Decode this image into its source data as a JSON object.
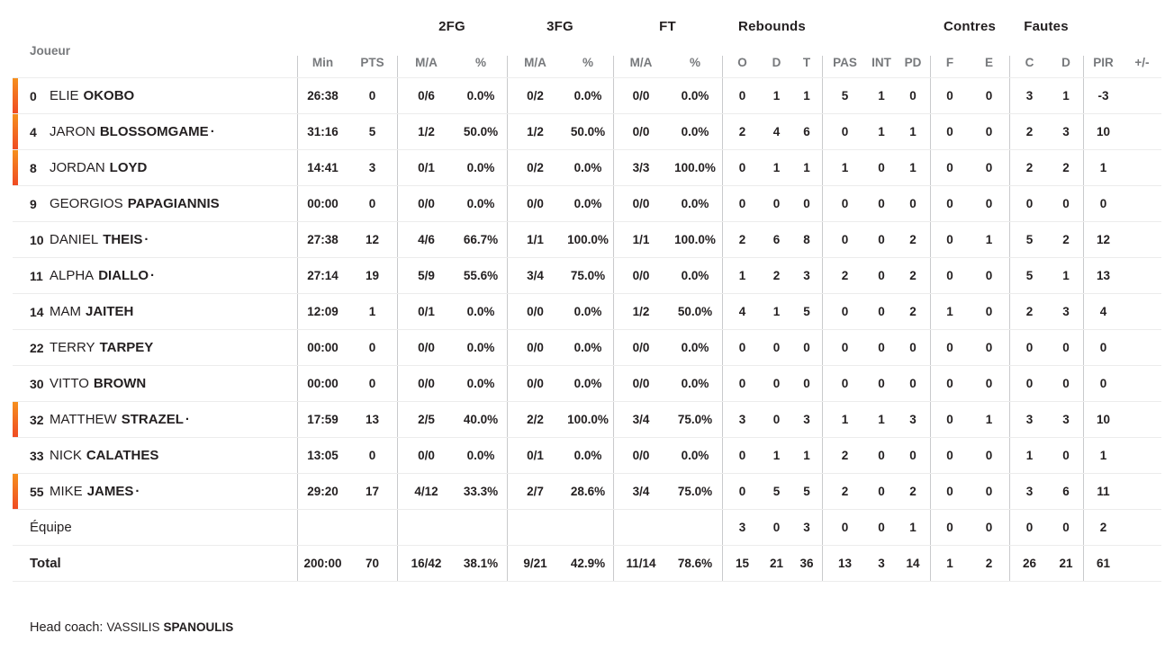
{
  "header": {
    "player_col": "Joueur",
    "groups": {
      "fg2": "2FG",
      "fg3": "3FG",
      "ft": "FT",
      "rebounds": "Rebounds",
      "contres": "Contres",
      "fautes": "Fautes"
    },
    "cols": {
      "min": "Min",
      "pts": "PTS",
      "ma": "M/A",
      "pct": "%",
      "reb_o": "O",
      "reb_d": "D",
      "reb_t": "T",
      "pas": "PAS",
      "int": "INT",
      "pd": "PD",
      "blk_f": "F",
      "blk_e": "E",
      "foul_c": "C",
      "foul_d": "D",
      "pir": "PIR",
      "plus_minus": "+/-"
    }
  },
  "players": [
    {
      "type": "player",
      "starter": true,
      "number": "0",
      "first": "ELIE",
      "last": "OKOBO",
      "dot": "",
      "min": "26:38",
      "pts": "0",
      "fg2_ma": "0/6",
      "fg2_pct": "0.0%",
      "fg3_ma": "0/2",
      "fg3_pct": "0.0%",
      "ft_ma": "0/0",
      "ft_pct": "0.0%",
      "reb_o": "0",
      "reb_d": "1",
      "reb_t": "1",
      "pas": "5",
      "int": "1",
      "pd": "0",
      "blk_f": "0",
      "blk_e": "0",
      "foul_c": "3",
      "foul_d": "1",
      "pir": "-3",
      "plus_minus": ""
    },
    {
      "type": "player",
      "starter": true,
      "number": "4",
      "first": "JARON",
      "last": "BLOSSOMGAME",
      "dot": "·",
      "min": "31:16",
      "pts": "5",
      "fg2_ma": "1/2",
      "fg2_pct": "50.0%",
      "fg3_ma": "1/2",
      "fg3_pct": "50.0%",
      "ft_ma": "0/0",
      "ft_pct": "0.0%",
      "reb_o": "2",
      "reb_d": "4",
      "reb_t": "6",
      "pas": "0",
      "int": "1",
      "pd": "1",
      "blk_f": "0",
      "blk_e": "0",
      "foul_c": "2",
      "foul_d": "3",
      "pir": "10",
      "plus_minus": ""
    },
    {
      "type": "player",
      "starter": true,
      "number": "8",
      "first": "JORDAN",
      "last": "LOYD",
      "dot": "",
      "min": "14:41",
      "pts": "3",
      "fg2_ma": "0/1",
      "fg2_pct": "0.0%",
      "fg3_ma": "0/2",
      "fg3_pct": "0.0%",
      "ft_ma": "3/3",
      "ft_pct": "100.0%",
      "reb_o": "0",
      "reb_d": "1",
      "reb_t": "1",
      "pas": "1",
      "int": "0",
      "pd": "1",
      "blk_f": "0",
      "blk_e": "0",
      "foul_c": "2",
      "foul_d": "2",
      "pir": "1",
      "plus_minus": ""
    },
    {
      "type": "player",
      "starter": false,
      "number": "9",
      "first": "GEORGIOS",
      "last": "PAPAGIANNIS",
      "dot": "",
      "min": "00:00",
      "pts": "0",
      "fg2_ma": "0/0",
      "fg2_pct": "0.0%",
      "fg3_ma": "0/0",
      "fg3_pct": "0.0%",
      "ft_ma": "0/0",
      "ft_pct": "0.0%",
      "reb_o": "0",
      "reb_d": "0",
      "reb_t": "0",
      "pas": "0",
      "int": "0",
      "pd": "0",
      "blk_f": "0",
      "blk_e": "0",
      "foul_c": "0",
      "foul_d": "0",
      "pir": "0",
      "plus_minus": ""
    },
    {
      "type": "player",
      "starter": false,
      "number": "10",
      "first": "DANIEL",
      "last": "THEIS",
      "dot": "·",
      "min": "27:38",
      "pts": "12",
      "fg2_ma": "4/6",
      "fg2_pct": "66.7%",
      "fg3_ma": "1/1",
      "fg3_pct": "100.0%",
      "ft_ma": "1/1",
      "ft_pct": "100.0%",
      "reb_o": "2",
      "reb_d": "6",
      "reb_t": "8",
      "pas": "0",
      "int": "0",
      "pd": "2",
      "blk_f": "0",
      "blk_e": "1",
      "foul_c": "5",
      "foul_d": "2",
      "pir": "12",
      "plus_minus": ""
    },
    {
      "type": "player",
      "starter": false,
      "number": "11",
      "first": "ALPHA",
      "last": "DIALLO",
      "dot": "·",
      "min": "27:14",
      "pts": "19",
      "fg2_ma": "5/9",
      "fg2_pct": "55.6%",
      "fg3_ma": "3/4",
      "fg3_pct": "75.0%",
      "ft_ma": "0/0",
      "ft_pct": "0.0%",
      "reb_o": "1",
      "reb_d": "2",
      "reb_t": "3",
      "pas": "2",
      "int": "0",
      "pd": "2",
      "blk_f": "0",
      "blk_e": "0",
      "foul_c": "5",
      "foul_d": "1",
      "pir": "13",
      "plus_minus": ""
    },
    {
      "type": "player",
      "starter": false,
      "number": "14",
      "first": "MAM",
      "last": "JAITEH",
      "dot": "",
      "min": "12:09",
      "pts": "1",
      "fg2_ma": "0/1",
      "fg2_pct": "0.0%",
      "fg3_ma": "0/0",
      "fg3_pct": "0.0%",
      "ft_ma": "1/2",
      "ft_pct": "50.0%",
      "reb_o": "4",
      "reb_d": "1",
      "reb_t": "5",
      "pas": "0",
      "int": "0",
      "pd": "2",
      "blk_f": "1",
      "blk_e": "0",
      "foul_c": "2",
      "foul_d": "3",
      "pir": "4",
      "plus_minus": ""
    },
    {
      "type": "player",
      "starter": false,
      "number": "22",
      "first": "TERRY",
      "last": "TARPEY",
      "dot": "",
      "min": "00:00",
      "pts": "0",
      "fg2_ma": "0/0",
      "fg2_pct": "0.0%",
      "fg3_ma": "0/0",
      "fg3_pct": "0.0%",
      "ft_ma": "0/0",
      "ft_pct": "0.0%",
      "reb_o": "0",
      "reb_d": "0",
      "reb_t": "0",
      "pas": "0",
      "int": "0",
      "pd": "0",
      "blk_f": "0",
      "blk_e": "0",
      "foul_c": "0",
      "foul_d": "0",
      "pir": "0",
      "plus_minus": ""
    },
    {
      "type": "player",
      "starter": false,
      "number": "30",
      "first": "VITTO",
      "last": "BROWN",
      "dot": "",
      "min": "00:00",
      "pts": "0",
      "fg2_ma": "0/0",
      "fg2_pct": "0.0%",
      "fg3_ma": "0/0",
      "fg3_pct": "0.0%",
      "ft_ma": "0/0",
      "ft_pct": "0.0%",
      "reb_o": "0",
      "reb_d": "0",
      "reb_t": "0",
      "pas": "0",
      "int": "0",
      "pd": "0",
      "blk_f": "0",
      "blk_e": "0",
      "foul_c": "0",
      "foul_d": "0",
      "pir": "0",
      "plus_minus": ""
    },
    {
      "type": "player",
      "starter": true,
      "number": "32",
      "first": "MATTHEW",
      "last": "STRAZEL",
      "dot": "·",
      "min": "17:59",
      "pts": "13",
      "fg2_ma": "2/5",
      "fg2_pct": "40.0%",
      "fg3_ma": "2/2",
      "fg3_pct": "100.0%",
      "ft_ma": "3/4",
      "ft_pct": "75.0%",
      "reb_o": "3",
      "reb_d": "0",
      "reb_t": "3",
      "pas": "1",
      "int": "1",
      "pd": "3",
      "blk_f": "0",
      "blk_e": "1",
      "foul_c": "3",
      "foul_d": "3",
      "pir": "10",
      "plus_minus": ""
    },
    {
      "type": "player",
      "starter": false,
      "number": "33",
      "first": "NICK",
      "last": "CALATHES",
      "dot": "",
      "min": "13:05",
      "pts": "0",
      "fg2_ma": "0/0",
      "fg2_pct": "0.0%",
      "fg3_ma": "0/1",
      "fg3_pct": "0.0%",
      "ft_ma": "0/0",
      "ft_pct": "0.0%",
      "reb_o": "0",
      "reb_d": "1",
      "reb_t": "1",
      "pas": "2",
      "int": "0",
      "pd": "0",
      "blk_f": "0",
      "blk_e": "0",
      "foul_c": "1",
      "foul_d": "0",
      "pir": "1",
      "plus_minus": ""
    },
    {
      "type": "player",
      "starter": true,
      "number": "55",
      "first": "MIKE",
      "last": "JAMES",
      "dot": "·",
      "min": "29:20",
      "pts": "17",
      "fg2_ma": "4/12",
      "fg2_pct": "33.3%",
      "fg3_ma": "2/7",
      "fg3_pct": "28.6%",
      "ft_ma": "3/4",
      "ft_pct": "75.0%",
      "reb_o": "0",
      "reb_d": "5",
      "reb_t": "5",
      "pas": "2",
      "int": "0",
      "pd": "2",
      "blk_f": "0",
      "blk_e": "0",
      "foul_c": "3",
      "foul_d": "6",
      "pir": "11",
      "plus_minus": ""
    },
    {
      "type": "team",
      "starter": false,
      "number": "",
      "first": "Équipe",
      "last": "",
      "dot": "",
      "min": "",
      "pts": "",
      "fg2_ma": "",
      "fg2_pct": "",
      "fg3_ma": "",
      "fg3_pct": "",
      "ft_ma": "",
      "ft_pct": "",
      "reb_o": "3",
      "reb_d": "0",
      "reb_t": "3",
      "pas": "0",
      "int": "0",
      "pd": "1",
      "blk_f": "0",
      "blk_e": "0",
      "foul_c": "0",
      "foul_d": "0",
      "pir": "2",
      "plus_minus": ""
    },
    {
      "type": "total",
      "starter": false,
      "number": "",
      "first": "",
      "last": "Total",
      "dot": "",
      "min": "200:00",
      "pts": "70",
      "fg2_ma": "16/42",
      "fg2_pct": "38.1%",
      "fg3_ma": "9/21",
      "fg3_pct": "42.9%",
      "ft_ma": "11/14",
      "ft_pct": "78.6%",
      "reb_o": "15",
      "reb_d": "21",
      "reb_t": "36",
      "pas": "13",
      "int": "3",
      "pd": "14",
      "blk_f": "1",
      "blk_e": "2",
      "foul_c": "26",
      "foul_d": "21",
      "pir": "61",
      "plus_minus": ""
    }
  ],
  "footer": {
    "head_coach_label": "Head coach:",
    "coach_first": "VASSILIS",
    "coach_last": "SPANOULIS"
  },
  "colors": {
    "accent_bar_top": "#f6911e",
    "accent_bar_bottom": "#ef4b23",
    "text": "#231f20",
    "muted_header": "#77797c",
    "column_divider": "#c9cacc",
    "row_divider": "#ececec"
  }
}
